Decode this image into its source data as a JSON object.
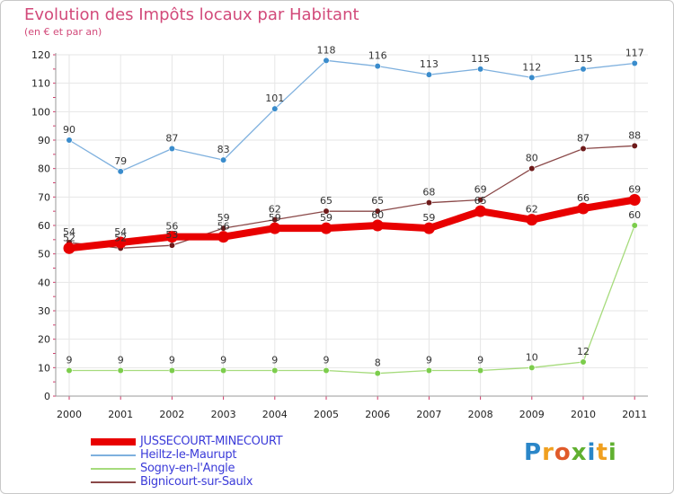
{
  "title": "Evolution des Impôts locaux par Habitant",
  "subtitle": "(en € et par an)",
  "logo": {
    "text": "Proxiti",
    "letters": [
      {
        "ch": "P",
        "color": "#2a86c8"
      },
      {
        "ch": "r",
        "color": "#f0a020"
      },
      {
        "ch": "o",
        "color": "#e05a2a"
      },
      {
        "ch": "x",
        "color": "#60b030"
      },
      {
        "ch": "i",
        "color": "#2a86c8"
      },
      {
        "ch": "t",
        "color": "#f0a020"
      },
      {
        "ch": "i",
        "color": "#60b030"
      }
    ]
  },
  "chart_data": {
    "type": "line",
    "title": "Evolution des Impôts locaux par Habitant",
    "subtitle": "(en € et par an)",
    "x": [
      "2000",
      "2001",
      "2002",
      "2003",
      "2004",
      "2005",
      "2006",
      "2007",
      "2008",
      "2009",
      "2010",
      "2011"
    ],
    "ylim": [
      0,
      120
    ],
    "yticks": [
      0,
      10,
      20,
      30,
      40,
      50,
      60,
      70,
      80,
      90,
      100,
      110,
      120
    ],
    "grid": true,
    "legend_position": "bottom-left",
    "series": [
      {
        "name": "JUSSECOURT-MINECOURT",
        "color": "#e80000",
        "marker": "#e80000",
        "width": 8,
        "values": [
          52,
          54,
          56,
          56,
          59,
          59,
          60,
          59,
          65,
          62,
          66,
          69
        ]
      },
      {
        "name": "Heiltz-le-Maurupt",
        "color": "#7eb0de",
        "marker": "#3a8ccc",
        "width": 1.3,
        "values": [
          90,
          79,
          87,
          83,
          101,
          118,
          116,
          113,
          115,
          112,
          115,
          117
        ]
      },
      {
        "name": "Sogny-en-l'Angle",
        "color": "#a6db7c",
        "marker": "#7ccd4c",
        "width": 1.3,
        "values": [
          9,
          9,
          9,
          9,
          9,
          9,
          8,
          9,
          9,
          10,
          12,
          60
        ]
      },
      {
        "name": "Bignicourt-sur-Saulx",
        "color": "#8a4848",
        "marker": "#6e1a1a",
        "width": 1.3,
        "values": [
          54,
          52,
          53,
          59,
          62,
          65,
          65,
          68,
          69,
          80,
          87,
          88
        ]
      }
    ],
    "data_labels": {
      "JUSSECOURT-MINECOURT": [
        "52",
        "54",
        "56",
        "56",
        "59",
        "59",
        "60",
        "59",
        "65",
        "62",
        "66",
        "69"
      ],
      "Heiltz-le-Maurupt": [
        "90",
        "79",
        "87",
        "83",
        "101",
        "118",
        "116",
        "113",
        "115",
        "112",
        "115",
        "117"
      ],
      "Sogny-en-l'Angle": [
        "9",
        "9",
        "9",
        "9",
        "9",
        "9",
        "8",
        "9",
        "9",
        "10",
        "12",
        "60"
      ],
      "Bignicourt-sur-Saulx": [
        "54",
        "52",
        "53",
        "59",
        "62",
        "65",
        "65",
        "68",
        "69",
        "80",
        "87",
        "88"
      ]
    }
  }
}
